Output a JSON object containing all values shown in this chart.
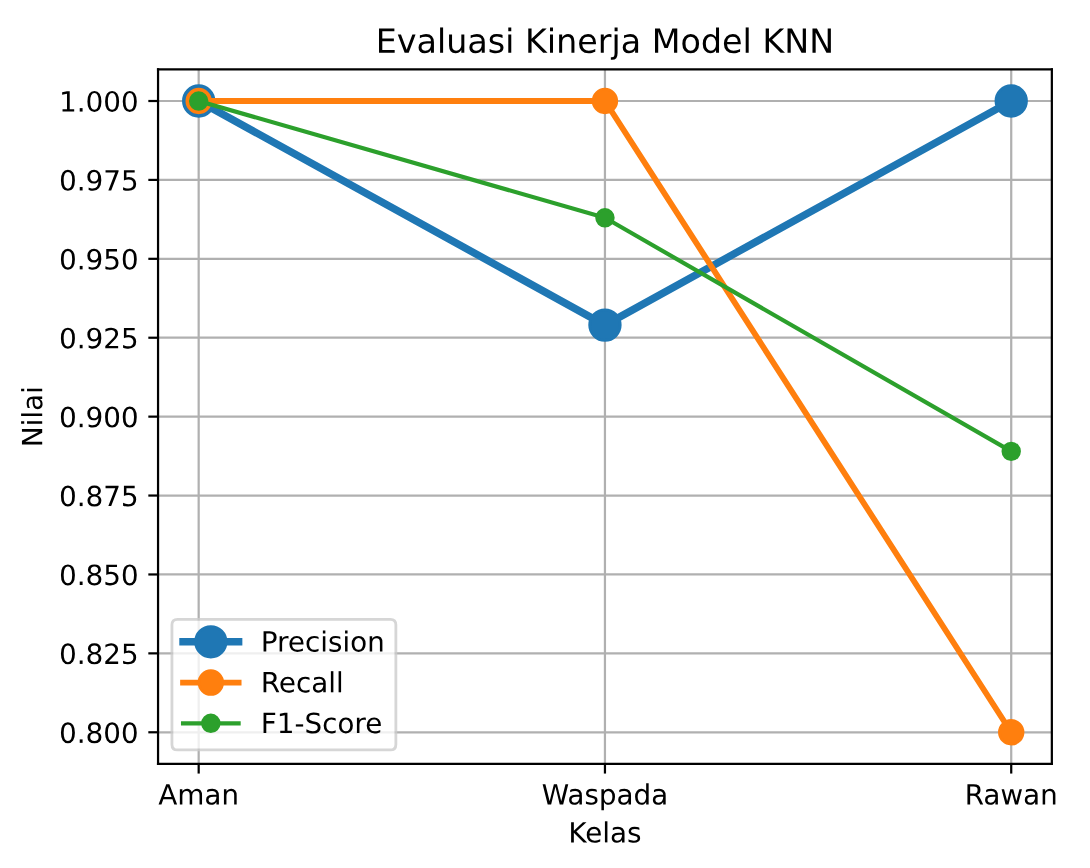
{
  "chart_data": {
    "type": "line",
    "title": "Evaluasi Kinerja Model KNN",
    "xlabel": "Kelas",
    "ylabel": "Nilai",
    "categories": [
      "Aman",
      "Waspada",
      "Rawan"
    ],
    "series": [
      {
        "name": "Precision",
        "color": "#1f77b4",
        "values": [
          1.0,
          0.929,
          1.0
        ]
      },
      {
        "name": "Recall",
        "color": "#ff7f0e",
        "values": [
          1.0,
          1.0,
          0.8
        ]
      },
      {
        "name": "F1-Score",
        "color": "#2ca02c",
        "values": [
          1.0,
          0.963,
          0.889
        ]
      }
    ],
    "ylim": [
      0.79,
      1.01
    ],
    "yticks": [
      {
        "value": 0.8,
        "label": "0.800"
      },
      {
        "value": 0.825,
        "label": "0.825"
      },
      {
        "value": 0.85,
        "label": "0.850"
      },
      {
        "value": 0.875,
        "label": "0.875"
      },
      {
        "value": 0.9,
        "label": "0.900"
      },
      {
        "value": 0.925,
        "label": "0.925"
      },
      {
        "value": 0.95,
        "label": "0.950"
      },
      {
        "value": 0.975,
        "label": "0.975"
      },
      {
        "value": 1.0,
        "label": "1.000"
      }
    ],
    "grid": true,
    "legend": "bottom left",
    "marker": "circle",
    "line_style": "solid"
  }
}
